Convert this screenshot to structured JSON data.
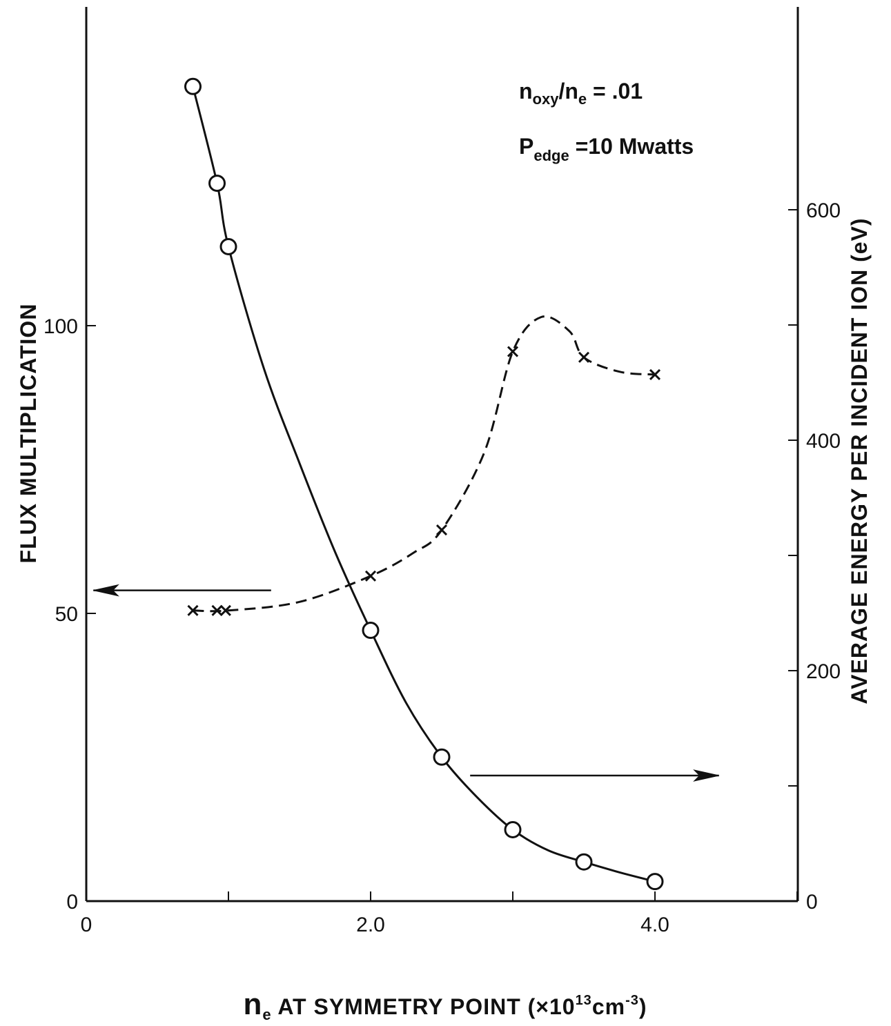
{
  "chart_data": {
    "type": "line",
    "xlabel": {
      "main": "n",
      "main_sub": "e",
      "rest": " AT  SYMMETRY  POINT  (×10",
      "exp1": "13",
      "unit": "cm",
      "exp2": "-3",
      "close": ")"
    },
    "ylabel_left": "FLUX  MULTIPLICATION",
    "ylabel_right": "AVERAGE  ENERGY  PER  INCIDENT  ION  (eV)",
    "xlim": [
      0,
      5
    ],
    "ylim_left": [
      0,
      140
    ],
    "ylim_right": [
      0,
      760
    ],
    "x_ticks": [
      {
        "value": 0,
        "label": "0"
      },
      {
        "value": 1,
        "label": ""
      },
      {
        "value": 2,
        "label": "2.0"
      },
      {
        "value": 3,
        "label": ""
      },
      {
        "value": 4,
        "label": "4.0"
      },
      {
        "value": 5,
        "label": ""
      }
    ],
    "y_left_ticks": [
      {
        "value": 0,
        "label": "0"
      },
      {
        "value": 50,
        "label": "50"
      },
      {
        "value": 100,
        "label": "100"
      }
    ],
    "y_right_ticks": [
      {
        "value": 0,
        "label": "0"
      },
      {
        "value": 100,
        "label": ""
      },
      {
        "value": 200,
        "label": "200"
      },
      {
        "value": 300,
        "label": ""
      },
      {
        "value": 400,
        "label": "400"
      },
      {
        "value": 500,
        "label": ""
      },
      {
        "value": 600,
        "label": "600"
      }
    ],
    "annotation": {
      "line1_main": "n",
      "line1_sub": "oxy",
      "line1_slash": "/n",
      "line1_sub2": "e",
      "line1_rest": " = .01",
      "line2_main": "P",
      "line2_sub": "edge",
      "line2_rest": "  =10  Mwatts"
    },
    "series": [
      {
        "axis": "left",
        "marker": "x",
        "linestyle": "dashed",
        "x": [
          0.75,
          0.92,
          0.98,
          2.0,
          2.5,
          3.0,
          3.5,
          4.0
        ],
        "y": [
          50.5,
          50.5,
          50.5,
          56.5,
          64.5,
          95.5,
          94.5,
          91.5
        ],
        "curve_x": [
          0.75,
          1.0,
          1.5,
          2.0,
          2.3,
          2.5,
          2.8,
          3.0,
          3.2,
          3.4,
          3.5,
          3.75,
          4.0
        ],
        "curve_y": [
          50.5,
          50.5,
          52,
          56.5,
          60.5,
          64.5,
          78,
          95.5,
          101.5,
          99,
          94.5,
          92,
          91.5
        ]
      },
      {
        "axis": "right",
        "marker": "o",
        "linestyle": "solid",
        "x": [
          0.75,
          0.92,
          1.0,
          2.0,
          2.5,
          3.0,
          3.5,
          4.0
        ],
        "y": [
          707,
          623,
          568,
          235,
          125,
          62,
          34,
          17
        ],
        "curve_x": [
          0.75,
          0.92,
          1.0,
          1.25,
          1.5,
          1.75,
          2.0,
          2.25,
          2.5,
          2.75,
          3.0,
          3.25,
          3.5,
          3.75,
          4.0
        ],
        "curve_y": [
          707,
          623,
          568,
          462,
          380,
          303,
          235,
          172,
          125,
          90,
          62,
          44,
          34,
          25,
          17
        ]
      }
    ],
    "arrows": [
      {
        "axis": "left",
        "from_x": 1.3,
        "from_y": 54,
        "to_x": 0.05,
        "to_y": 54
      },
      {
        "axis": "right",
        "from_x": 2.7,
        "from_y": 109,
        "to_x": 4.45,
        "to_y": 109
      }
    ],
    "grid": false
  }
}
